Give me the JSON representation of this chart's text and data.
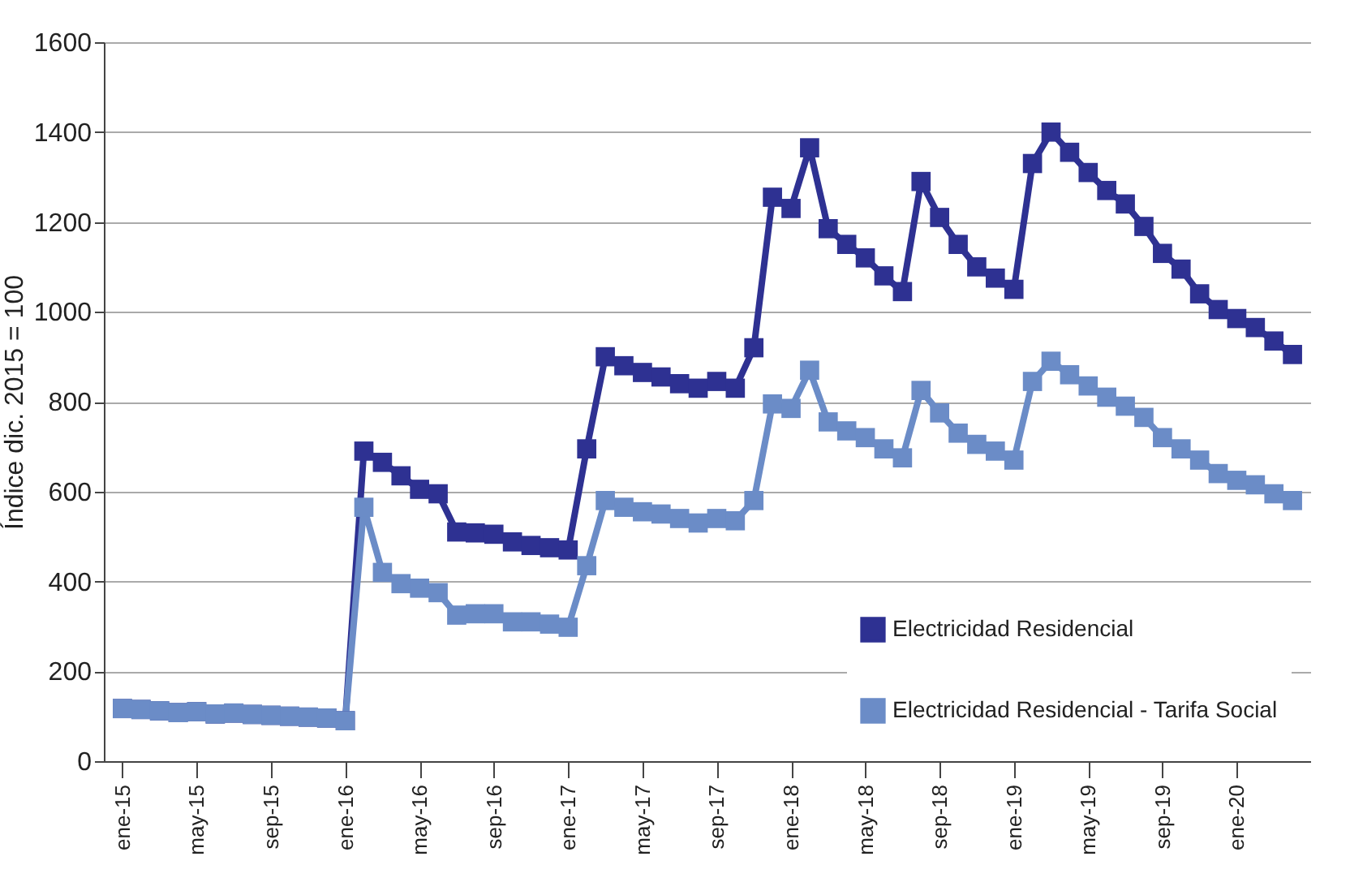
{
  "chart_data": {
    "type": "line",
    "ylabel": "Índice dic. 2015 = 100",
    "categories": [
      "ene-15",
      null,
      null,
      null,
      "may-15",
      null,
      null,
      null,
      "sep-15",
      null,
      null,
      null,
      "ene-16",
      null,
      null,
      null,
      "may-16",
      null,
      null,
      null,
      "sep-16",
      null,
      null,
      null,
      "ene-17",
      null,
      null,
      null,
      "may-17",
      null,
      null,
      null,
      "sep-17",
      null,
      null,
      null,
      "ene-18",
      null,
      null,
      null,
      "may-18",
      null,
      null,
      null,
      "sep-18",
      null,
      null,
      null,
      "ene-19",
      null,
      null,
      null,
      "may-19",
      null,
      null,
      null,
      "sep-19",
      null,
      null,
      null,
      "ene-20",
      null,
      null,
      null
    ],
    "series": [
      {
        "name": "Electricidad Residencial",
        "color": "#2e3192",
        "values": [
          117,
          115,
          112,
          108,
          110,
          105,
          107,
          104,
          102,
          100,
          98,
          96,
          90,
          690,
          665,
          635,
          605,
          595,
          510,
          508,
          505,
          488,
          480,
          475,
          470,
          695,
          900,
          880,
          865,
          855,
          840,
          830,
          845,
          830,
          920,
          1255,
          1230,
          1365,
          1185,
          1150,
          1120,
          1080,
          1045,
          1290,
          1210,
          1150,
          1100,
          1075,
          1050,
          1330,
          1400,
          1355,
          1310,
          1270,
          1240,
          1190,
          1130,
          1095,
          1040,
          1005,
          985,
          965,
          935,
          905
        ]
      },
      {
        "name": "Electricidad Residencial - Tarifa Social",
        "color": "#6b8cc7",
        "values": [
          117,
          115,
          112,
          108,
          110,
          105,
          107,
          104,
          102,
          100,
          98,
          96,
          90,
          565,
          420,
          395,
          385,
          375,
          325,
          328,
          328,
          310,
          310,
          305,
          298,
          435,
          580,
          565,
          555,
          550,
          540,
          530,
          540,
          535,
          580,
          795,
          785,
          870,
          755,
          735,
          720,
          695,
          675,
          825,
          775,
          730,
          705,
          690,
          670,
          845,
          890,
          860,
          835,
          810,
          790,
          765,
          720,
          695,
          670,
          640,
          625,
          615,
          595,
          580
        ]
      }
    ],
    "ylim": [
      0,
      1600
    ],
    "yticks": [
      0,
      200,
      400,
      600,
      800,
      1000,
      1200,
      1400,
      1600
    ],
    "grid": "y",
    "legend": "bottom right",
    "marker": "square",
    "line_style": "solid"
  }
}
